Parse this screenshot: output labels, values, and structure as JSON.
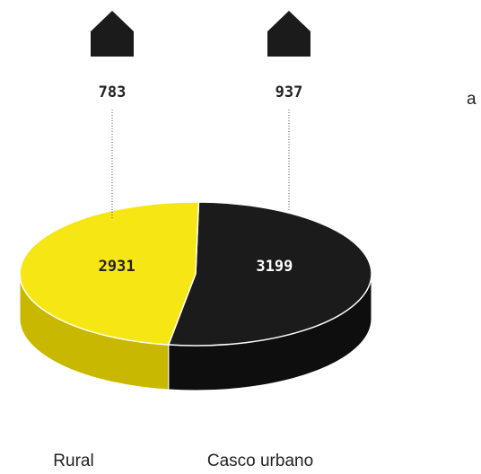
{
  "chart_data": {
    "type": "pie",
    "categories": [
      "Rural",
      "Casco urbano"
    ],
    "values": [
      2931,
      3199
    ],
    "colors": [
      "#f5e614",
      "#1b1b1b"
    ],
    "house_values": [
      783,
      937
    ],
    "annotation": "a"
  }
}
